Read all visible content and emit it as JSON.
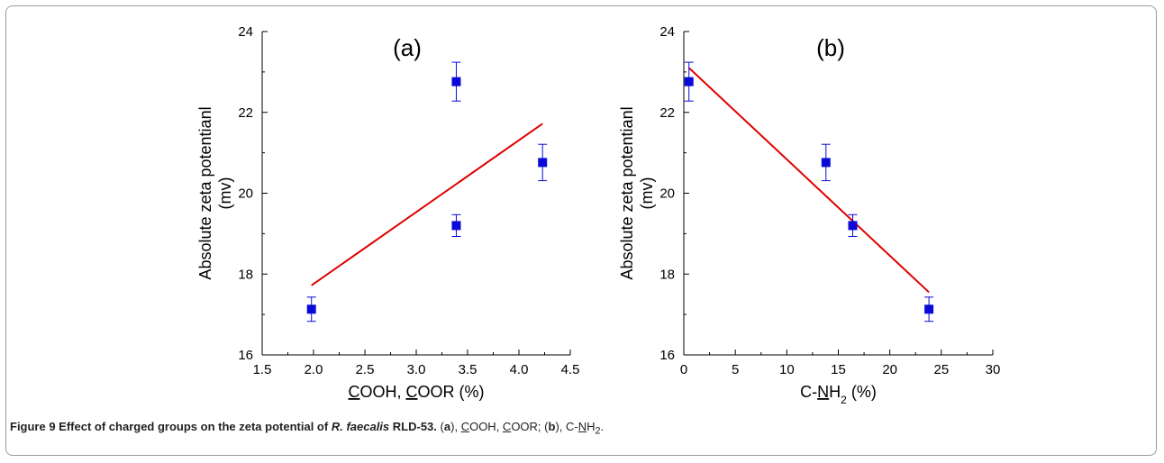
{
  "chart_data": [
    {
      "type": "scatter",
      "panel_label": "(a)",
      "xlabel": "COOH, COOR (%)",
      "xlabel_parts": [
        {
          "t": "C",
          "u": true
        },
        {
          "t": "OOH, ",
          "u": false
        },
        {
          "t": "C",
          "u": true
        },
        {
          "t": "OOR (%)",
          "u": false
        }
      ],
      "ylabel_lines": [
        "Absolute zeta potentianl",
        "(mv)"
      ],
      "xlim": [
        1.5,
        4.5
      ],
      "ylim": [
        16,
        24
      ],
      "xticks": [
        1.5,
        2.0,
        2.5,
        3.0,
        3.5,
        4.0,
        4.5
      ],
      "xtick_labels": [
        "1.5",
        "2.0",
        "2.5",
        "3.0",
        "3.5",
        "4.0",
        "4.5"
      ],
      "yticks": [
        16,
        18,
        20,
        22,
        24
      ],
      "ytick_labels": [
        "16",
        "18",
        "20",
        "22",
        "24"
      ],
      "points": [
        {
          "x": 1.98,
          "y": 17.13,
          "err": 0.3
        },
        {
          "x": 3.39,
          "y": 22.76,
          "err": 0.48
        },
        {
          "x": 3.39,
          "y": 19.2,
          "err": 0.27
        },
        {
          "x": 4.23,
          "y": 20.76,
          "err": 0.45
        }
      ],
      "fit_line": {
        "x": [
          1.98,
          4.23
        ],
        "y": [
          17.72,
          21.72
        ]
      },
      "grid": false
    },
    {
      "type": "scatter",
      "panel_label": "(b)",
      "xlabel": "C-NH2 (%)",
      "xlabel_parts": [
        {
          "t": "C-",
          "u": false
        },
        {
          "t": "N",
          "u": true
        },
        {
          "t": "H",
          "u": false
        },
        {
          "t": "2",
          "u": false,
          "sub": true
        },
        {
          "t": " (%)",
          "u": false
        }
      ],
      "ylabel_lines": [
        "Absolute zeta potentianl",
        "(mv)"
      ],
      "xlim": [
        0,
        30
      ],
      "ylim": [
        16,
        24
      ],
      "xticks": [
        0,
        5,
        10,
        15,
        20,
        25,
        30
      ],
      "xtick_labels": [
        "0",
        "5",
        "10",
        "15",
        "20",
        "25",
        "30"
      ],
      "yticks": [
        16,
        18,
        20,
        22,
        24
      ],
      "ytick_labels": [
        "16",
        "18",
        "20",
        "22",
        "24"
      ],
      "points": [
        {
          "x": 0.5,
          "y": 22.76,
          "err": 0.48
        },
        {
          "x": 13.8,
          "y": 20.76,
          "err": 0.45
        },
        {
          "x": 16.4,
          "y": 19.2,
          "err": 0.27
        },
        {
          "x": 23.8,
          "y": 17.13,
          "err": 0.3
        }
      ],
      "fit_line": {
        "x": [
          0.5,
          23.8
        ],
        "y": [
          23.1,
          17.55
        ]
      },
      "grid": false
    }
  ],
  "colors": {
    "marker": "#0a0ad8",
    "fit_line": "#e00000",
    "axis": "#000000"
  },
  "caption": {
    "label": "Figure 9 Effect of charged groups on the zeta potential of",
    "species": "R. faecalis",
    "strain": "RLD-53.",
    "a_open": "(",
    "a_letter": "a",
    "a_close": "),",
    "cooh_c": "C",
    "cooh_rest": "OOH, ",
    "coor_c": "C",
    "coor_rest": "OOR; (",
    "b_letter": "b",
    "b_close": "), C-",
    "nh_n": "N",
    "nh_h": "H",
    "nh_sub": "2",
    "end": "."
  }
}
